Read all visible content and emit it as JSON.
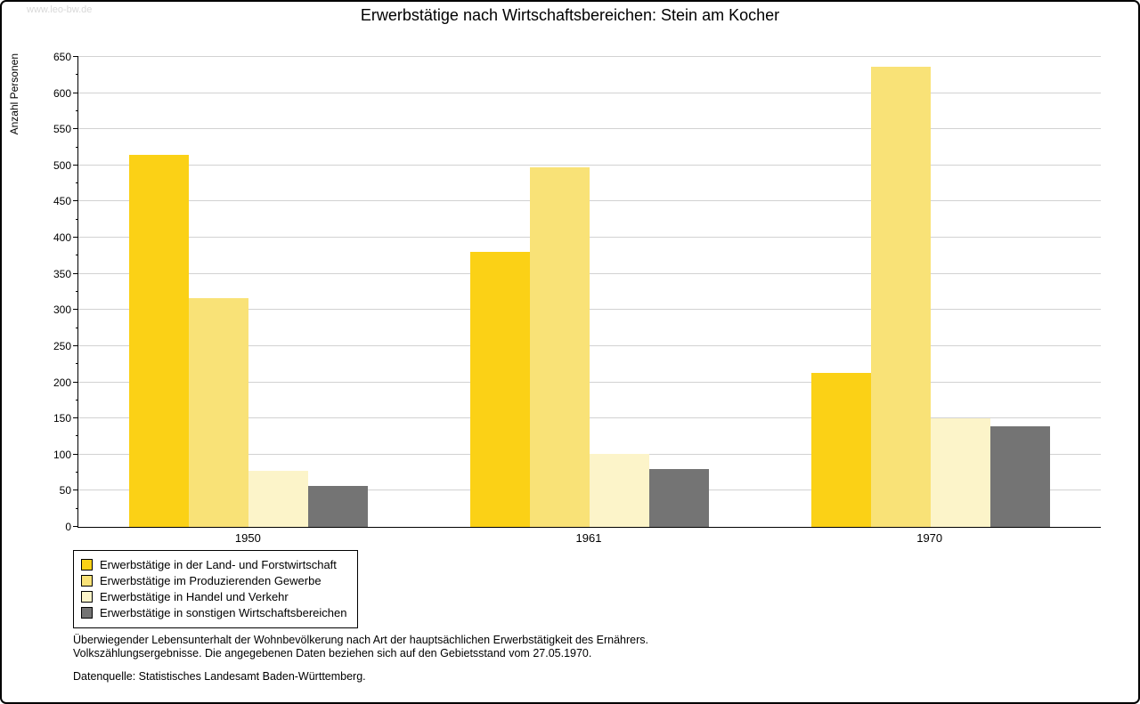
{
  "watermark": "www.leo-bw.de",
  "title": "Erwerbstätige nach Wirtschaftsbereichen: Stein am Kocher",
  "footnotes": {
    "line1": "Überwiegender Lebensunterhalt der Wohnbevölkerung nach Art der hauptsächlichen Erwerbstätigkeit des Ernährers.",
    "line2": "Volkszählungsergebnisse. Die angegebenen Daten beziehen sich auf den Gebietsstand vom 27.05.1970.",
    "source": "Datenquelle: Statistisches Landesamt Baden-Württemberg."
  },
  "chart_data": {
    "type": "bar",
    "title": "Erwerbstätige nach Wirtschaftsbereichen: Stein am Kocher",
    "xlabel": "",
    "ylabel": "Anzahl Personen",
    "ylim": [
      0,
      650
    ],
    "ytick_step": 50,
    "ytick_minor_step": 25,
    "grid": true,
    "legend_position": "bottom-left",
    "categories": [
      "1950",
      "1961",
      "1970"
    ],
    "series": [
      {
        "name": "Erwerbstätige in der Land- und Forstwirtschaft",
        "color": "#FBD116",
        "values": [
          514,
          380,
          213
        ]
      },
      {
        "name": "Erwerbstätige im Produzierenden Gewerbe",
        "color": "#F9E277",
        "values": [
          317,
          497,
          636
        ]
      },
      {
        "name": "Erwerbstätige in Handel und Verkehr",
        "color": "#FCF4C9",
        "values": [
          78,
          101,
          150
        ]
      },
      {
        "name": "Erwerbstätige in sonstigen Wirtschaftsbereichen",
        "color": "#747474",
        "values": [
          57,
          80,
          139
        ]
      }
    ]
  }
}
